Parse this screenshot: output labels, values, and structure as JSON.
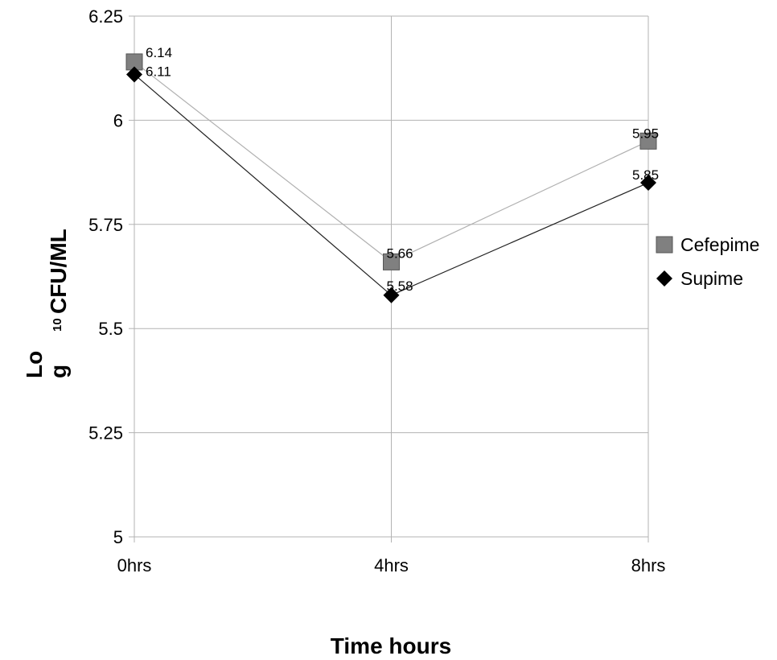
{
  "chart_data": {
    "type": "line",
    "categories": [
      "0hrs",
      "4hrs",
      "8hrs"
    ],
    "series": [
      {
        "name": "Cefepime",
        "values": [
          6.14,
          5.66,
          5.95
        ],
        "labels": [
          "6.14",
          "5.66",
          "5.95"
        ],
        "marker": "square",
        "marker_color": "#808080",
        "line_color": "#b0b0b0"
      },
      {
        "name": "Supime",
        "values": [
          6.11,
          5.58,
          5.85
        ],
        "labels": [
          "6.11",
          "5.58",
          "5.85"
        ],
        "marker": "diamond",
        "marker_color": "#000000",
        "line_color": "#222222"
      }
    ],
    "yticks": [
      5,
      5.25,
      5.5,
      5.75,
      6,
      6.25
    ],
    "ytick_labels": [
      "5",
      "5.25",
      "5.5",
      "5.75",
      "6",
      "6.25"
    ],
    "ylim": [
      5,
      6.25
    ],
    "xlabel": "Time hours",
    "ylabel": {
      "prefix": "Lo",
      "prefix2": "g",
      "sub": "10",
      "main": "CFU/ML"
    },
    "grid": true,
    "legend_position": "right",
    "gridline_color": "#b3b3b3"
  }
}
